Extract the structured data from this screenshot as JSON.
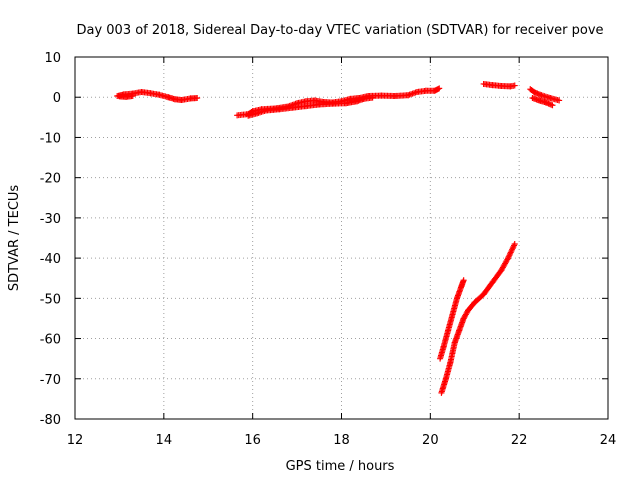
{
  "chart_data": {
    "type": "scatter",
    "title": "Day 003 of 2018, Sidereal Day-to-day VTEC variation (SDTVAR) for receiver pove",
    "xlabel": "GPS time / hours",
    "ylabel": "SDTVAR / TECUs",
    "xlim": [
      12,
      24
    ],
    "ylim": [
      -80,
      10
    ],
    "xticks": [
      12,
      14,
      16,
      18,
      20,
      22,
      24
    ],
    "yticks": [
      10,
      0,
      -10,
      -20,
      -30,
      -40,
      -50,
      -60,
      -70,
      -80
    ],
    "grid": true,
    "marker": "plus",
    "series": [
      {
        "name": "SDTVAR",
        "color": "#ff0000",
        "segments": [
          [
            [
              12.95,
              0.3
            ],
            [
              13.1,
              0.7
            ],
            [
              13.3,
              0.9
            ],
            [
              13.5,
              1.3
            ],
            [
              13.7,
              1.0
            ],
            [
              13.9,
              0.6
            ],
            [
              14.1,
              0.0
            ],
            [
              14.25,
              -0.5
            ],
            [
              14.4,
              -0.7
            ],
            [
              14.6,
              -0.3
            ],
            [
              14.75,
              -0.2
            ]
          ],
          [
            [
              13.0,
              0.2
            ],
            [
              13.15,
              0.1
            ],
            [
              13.3,
              0.3
            ]
          ],
          [
            [
              15.65,
              -4.5
            ],
            [
              15.9,
              -4.2
            ],
            [
              16.0,
              -3.5
            ],
            [
              16.2,
              -3.0
            ],
            [
              16.5,
              -2.8
            ],
            [
              16.8,
              -2.3
            ],
            [
              17.0,
              -1.5
            ],
            [
              17.2,
              -1.0
            ],
            [
              17.4,
              -0.8
            ],
            [
              17.6,
              -1.2
            ],
            [
              17.8,
              -1.3
            ],
            [
              18.0,
              -1.0
            ],
            [
              18.2,
              -0.4
            ],
            [
              18.4,
              -0.2
            ],
            [
              18.6,
              0.3
            ],
            [
              18.9,
              0.4
            ],
            [
              19.2,
              0.3
            ],
            [
              19.5,
              0.5
            ],
            [
              19.7,
              1.3
            ],
            [
              19.9,
              1.6
            ],
            [
              20.1,
              1.6
            ],
            [
              20.2,
              2.2
            ]
          ],
          [
            [
              15.9,
              -4.6
            ],
            [
              16.1,
              -4.0
            ],
            [
              16.3,
              -3.3
            ],
            [
              16.6,
              -3.0
            ],
            [
              16.9,
              -2.6
            ],
            [
              17.2,
              -2.2
            ],
            [
              17.5,
              -1.8
            ],
            [
              17.8,
              -1.6
            ],
            [
              18.1,
              -1.5
            ],
            [
              18.35,
              -1.0
            ],
            [
              18.5,
              -0.4
            ],
            [
              18.7,
              -0.1
            ]
          ],
          [
            [
              21.2,
              3.3
            ],
            [
              21.4,
              3.0
            ],
            [
              21.6,
              2.8
            ],
            [
              21.8,
              2.7
            ],
            [
              21.9,
              2.9
            ]
          ],
          [
            [
              22.25,
              2.0
            ],
            [
              22.35,
              1.2
            ],
            [
              22.5,
              0.5
            ],
            [
              22.7,
              -0.2
            ],
            [
              22.9,
              -0.8
            ]
          ],
          [
            [
              22.3,
              -0.2
            ],
            [
              22.45,
              -0.8
            ],
            [
              22.6,
              -1.3
            ],
            [
              22.75,
              -2.0
            ]
          ],
          [
            [
              20.22,
              -65
            ],
            [
              20.3,
              -62
            ],
            [
              20.4,
              -58
            ],
            [
              20.5,
              -54
            ],
            [
              20.6,
              -50
            ],
            [
              20.7,
              -47
            ],
            [
              20.75,
              -45.5
            ]
          ],
          [
            [
              20.25,
              -73.5
            ],
            [
              20.35,
              -70
            ],
            [
              20.45,
              -66
            ],
            [
              20.55,
              -61
            ],
            [
              20.65,
              -58
            ],
            [
              20.75,
              -55
            ],
            [
              20.85,
              -53
            ],
            [
              21.0,
              -51
            ],
            [
              21.2,
              -49
            ],
            [
              21.4,
              -46
            ],
            [
              21.6,
              -43
            ],
            [
              21.75,
              -40
            ],
            [
              21.9,
              -36.5
            ]
          ]
        ]
      }
    ]
  }
}
